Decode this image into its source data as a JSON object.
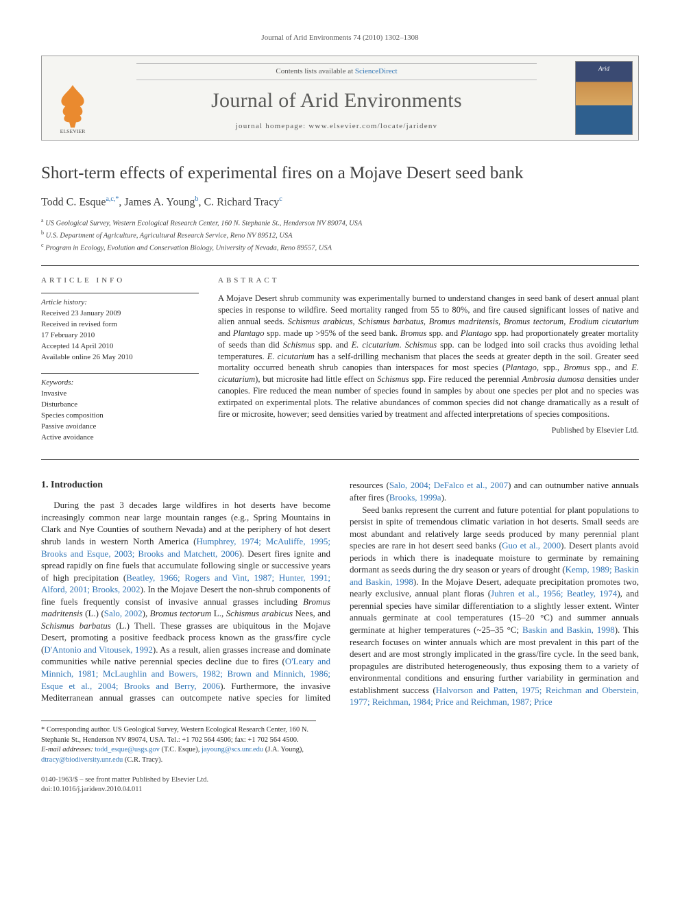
{
  "running_head": "Journal of Arid Environments 74 (2010) 1302–1308",
  "masthead": {
    "contents_prefix": "Contents lists available at ",
    "contents_link": "ScienceDirect",
    "journal_name": "Journal of Arid Environments",
    "homepage_prefix": "journal homepage: ",
    "homepage_url": "www.elsevier.com/locate/jaridenv",
    "cover_title": "Arid",
    "publisher_logo_label": "ELSEVIER"
  },
  "article": {
    "title": "Short-term effects of experimental fires on a Mojave Desert seed bank",
    "authors_html": "Todd C. Esque||a,c,*||, James A. Young||b||, C. Richard Tracy||c||",
    "affiliations": [
      {
        "sup": "a",
        "text": "US Geological Survey, Western Ecological Research Center, 160 N. Stephanie St., Henderson NV 89074, USA"
      },
      {
        "sup": "b",
        "text": "U.S. Department of Agriculture, Agricultural Research Service, Reno NV 89512, USA"
      },
      {
        "sup": "c",
        "text": "Program in Ecology, Evolution and Conservation Biology, University of Nevada, Reno 89557, USA"
      }
    ]
  },
  "article_info": {
    "heading": "ARTICLE INFO",
    "history_label": "Article history:",
    "history": [
      "Received 23 January 2009",
      "Received in revised form",
      "17 February 2010",
      "Accepted 14 April 2010",
      "Available online 26 May 2010"
    ],
    "keywords_label": "Keywords:",
    "keywords": [
      "Invasive",
      "Disturbance",
      "Species composition",
      "Passive avoidance",
      "Active avoidance"
    ]
  },
  "abstract": {
    "heading": "ABSTRACT",
    "text": "A Mojave Desert shrub community was experimentally burned to understand changes in seed bank of desert annual plant species in response to wildfire. Seed mortality ranged from 55 to 80%, and fire caused significant losses of native and alien annual seeds. Schismus arabicus, Schismus barbatus, Bromus madritensis, Bromus tectorum, Erodium cicutarium and Plantago spp. made up >95% of the seed bank. Bromus spp. and Plantago spp. had proportionately greater mortality of seeds than did Schismus spp. and E. cicutarium. Schismus spp. can be lodged into soil cracks thus avoiding lethal temperatures. E. cicutarium has a self-drilling mechanism that places the seeds at greater depth in the soil. Greater seed mortality occurred beneath shrub canopies than interspaces for most species (Plantago, spp., Bromus spp., and E. cicutarium), but microsite had little effect on Schismus spp. Fire reduced the perennial Ambrosia dumosa densities under canopies. Fire reduced the mean number of species found in samples by about one species per plot and no species was extirpated on experimental plots. The relative abundances of common species did not change dramatically as a result of fire or microsite, however; seed densities varied by treatment and affected interpretations of species compositions.",
    "published_by": "Published by Elsevier Ltd."
  },
  "body": {
    "section_heading": "1. Introduction",
    "p1a": "During the past 3 decades large wildfires in hot deserts have become increasingly common near large mountain ranges (e.g., Spring Mountains in Clark and Nye Counties of southern Nevada) and at the periphery of hot desert shrub lands in western North America (",
    "p1_cite1": "Humphrey, 1974; McAuliffe, 1995; Brooks and Esque, 2003; Brooks and Matchett, 2006",
    "p1b": "). Desert fires ignite and spread rapidly on fine fuels that accumulate following single or successive years of high precipitation (",
    "p1_cite2": "Beatley, 1966; Rogers and Vint, 1987; Hunter, 1991; Alford, 2001; Brooks, 2002",
    "p1c": "). In the Mojave Desert the non-shrub components of fine fuels frequently consist of invasive annual grasses including ",
    "p1_sp1": "Bromus madritensis",
    "p1d": " (L.) (",
    "p1_cite3": "Salo, 2002",
    "p1e": "), ",
    "p1_sp2": "Bromus tectorum",
    "p1f": " L., ",
    "p1_sp3": "Schismus arabicus",
    "p1g": " Nees, and ",
    "p1_sp4": "Schismus barbatus",
    "p1h": " (L.) Thell. These grasses are ubiquitous in the Mojave Desert, promoting a positive feedback process known as the grass/fire cycle (",
    "p1_cite4": "D'Antonio and Vitousek, 1992",
    "p1i": "). As a result, alien grasses increase and dominate communities while native perennial species decline due to fires (",
    "p1_cite5": "O'Leary and Minnich, 1981; McLaughlin and ",
    "p2_cite1": "Bowers, 1982; Brown and Minnich, 1986; Esque et al., 2004; Brooks and Berry, 2006",
    "p2a": "). Furthermore, the invasive Mediterranean annual grasses can outcompete native species for limited resources (",
    "p2_cite2": "Salo, 2004; DeFalco et al., 2007",
    "p2b": ") and can outnumber native annuals after fires (",
    "p2_cite3": "Brooks, 1999a",
    "p2c": ").",
    "p3a": "Seed banks represent the current and future potential for plant populations to persist in spite of tremendous climatic variation in hot deserts. Small seeds are most abundant and relatively large seeds produced by many perennial plant species are rare in hot desert seed banks (",
    "p3_cite1": "Guo et al., 2000",
    "p3b": "). Desert plants avoid periods in which there is inadequate moisture to germinate by remaining dormant as seeds during the dry season or years of drought (",
    "p3_cite2": "Kemp, 1989; Baskin and Baskin, 1998",
    "p3c": "). In the Mojave Desert, adequate precipitation promotes two, nearly exclusive, annual plant floras (",
    "p3_cite3": "Juhren et al., 1956; Beatley, 1974",
    "p3d": "), and perennial species have similar differentiation to a slightly lesser extent. Winter annuals germinate at cool temperatures (15–20 °C) and summer annuals germinate at higher temperatures (~25–35 °C; ",
    "p3_cite4": "Baskin and Baskin, 1998",
    "p3e": "). This research focuses on winter annuals which are most prevalent in this part of the desert and are most strongly implicated in the grass/fire cycle. In the seed bank, propagules are distributed heterogeneously, thus exposing them to a variety of environmental conditions and ensuring further variability in germination and establishment success (",
    "p3_cite5": "Halvorson and Patten, 1975; Reichman and Oberstein, 1977; Reichman, 1984; Price and Reichman, 1987; Price "
  },
  "footnotes": {
    "corr_label": "* Corresponding author. ",
    "corr_text": "US Geological Survey, Western Ecological Research Center, 160 N. Stephanie St., Henderson NV 89074, USA. Tel.: +1 702 564 4506; fax: +1 702 564 4500.",
    "email_label": "E-mail addresses: ",
    "emails": "todd_esque@usgs.gov (T.C. Esque), jayoung@scs.unr.edu (J.A. Young), dtracy@biodiversity.unr.edu (C.R. Tracy)."
  },
  "bottom": {
    "line1": "0140-1963/$ – see front matter Published by Elsevier Ltd.",
    "line2": "doi:10.1016/j.jaridenv.2010.04.011"
  },
  "colors": {
    "link": "#2f74b5",
    "text": "#2a2a2a",
    "rule": "#333333",
    "masthead_bg": "#f5f5f2",
    "elsevier_orange": "#ea8a2f"
  }
}
